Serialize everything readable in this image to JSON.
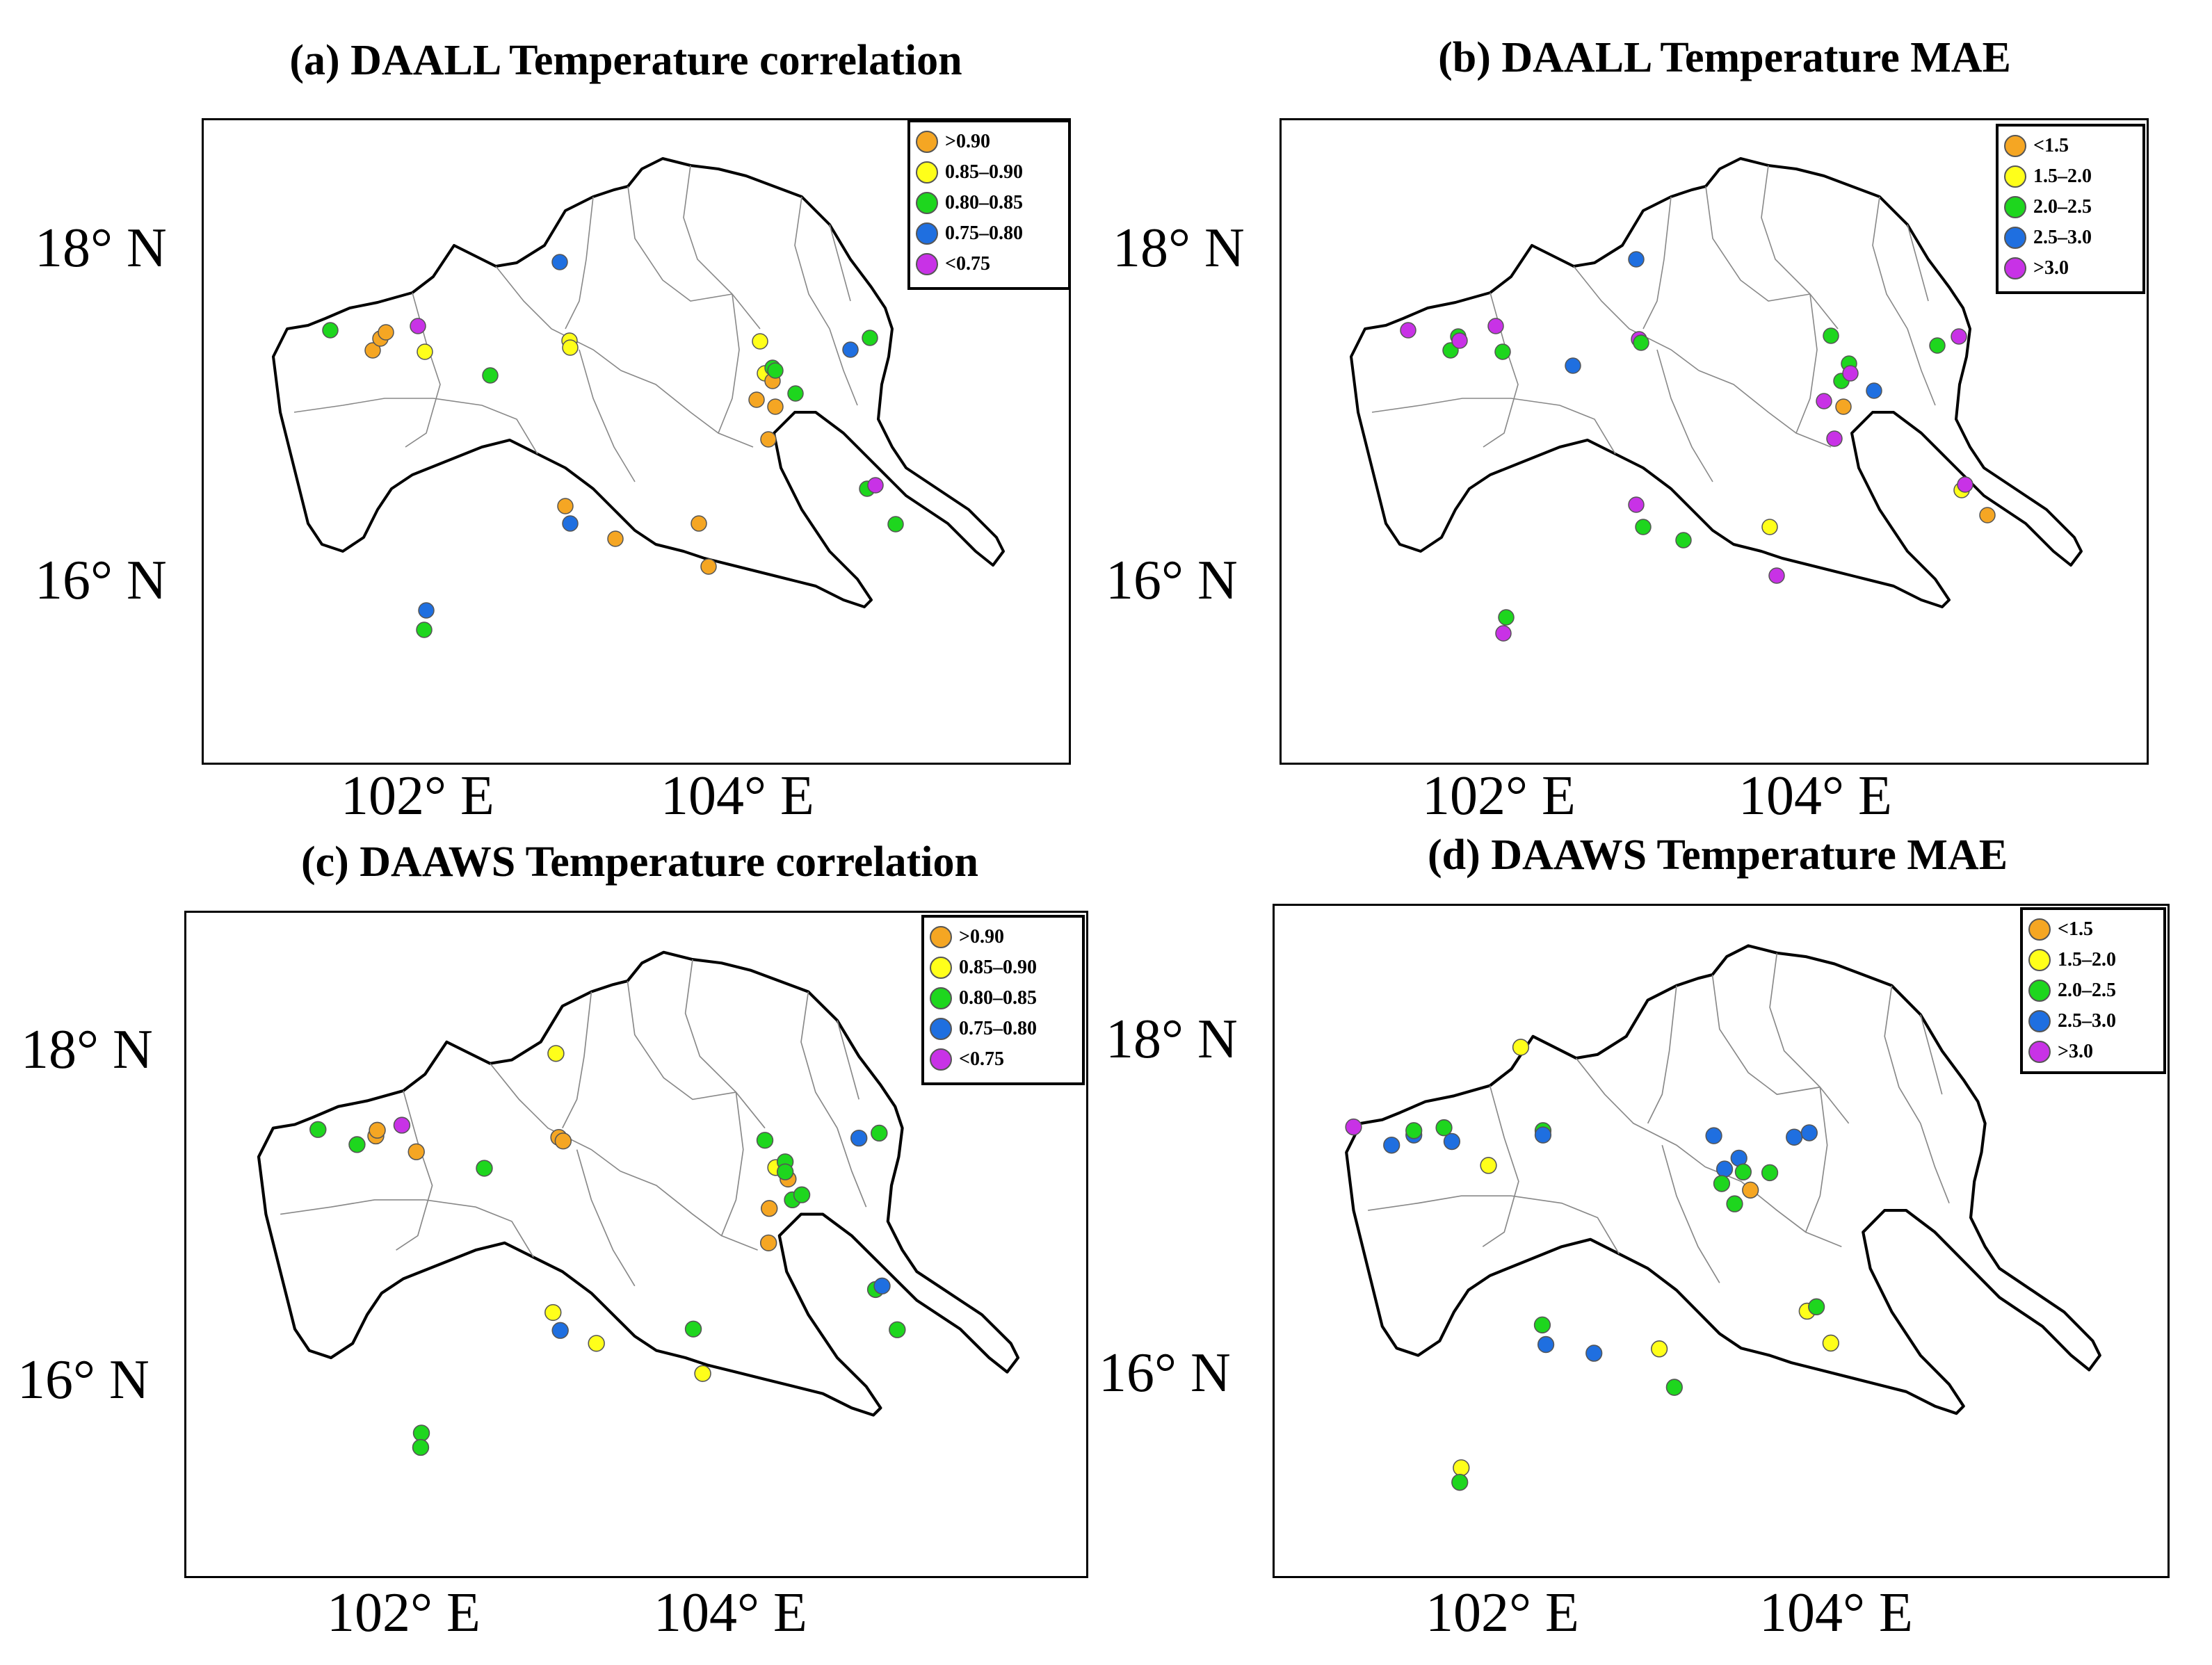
{
  "panels": [
    {
      "title": "(a) DAALL Temperature correlation",
      "legend": [
        {
          "label": ">0.90",
          "color": "#f5a623"
        },
        {
          "label": "0.85–0.90",
          "color": "#ffff1a"
        },
        {
          "label": "0.80–0.85",
          "color": "#1ed61e"
        },
        {
          "label": "0.75–0.80",
          "color": "#1f6fe0"
        },
        {
          "label": "<0.75",
          "color": "#c832e6"
        }
      ],
      "lat_labels": [
        "18° N",
        "16° N"
      ],
      "lon_labels": [
        "102° E",
        "104° E"
      ]
    },
    {
      "title": "(b) DAALL Temperature MAE",
      "legend": [
        {
          "label": "<1.5",
          "color": "#f5a623"
        },
        {
          "label": "1.5–2.0",
          "color": "#ffff1a"
        },
        {
          "label": "2.0–2.5",
          "color": "#1ed61e"
        },
        {
          "label": "2.5–3.0",
          "color": "#1f6fe0"
        },
        {
          "label": ">3.0",
          "color": "#c832e6"
        }
      ],
      "lat_labels": [
        "18° N",
        "16° N"
      ],
      "lon_labels": [
        "102° E",
        "104° E"
      ]
    },
    {
      "title": "(c) DAAWS Temperature correlation",
      "legend": [
        {
          "label": ">0.90",
          "color": "#f5a623"
        },
        {
          "label": "0.85–0.90",
          "color": "#ffff1a"
        },
        {
          "label": "0.80–0.85",
          "color": "#1ed61e"
        },
        {
          "label": "0.75–0.80",
          "color": "#1f6fe0"
        },
        {
          "label": "<0.75",
          "color": "#c832e6"
        }
      ],
      "lat_labels": [
        "18° N",
        "16° N"
      ],
      "lon_labels": [
        "102° E",
        "104° E"
      ]
    },
    {
      "title": "(d) DAAWS Temperature MAE",
      "legend": [
        {
          "label": "<1.5",
          "color": "#f5a623"
        },
        {
          "label": "1.5–2.0",
          "color": "#ffff1a"
        },
        {
          "label": "2.0–2.5",
          "color": "#1ed61e"
        },
        {
          "label": "2.5–3.0",
          "color": "#1f6fe0"
        },
        {
          "label": ">3.0",
          "color": "#c832e6"
        }
      ],
      "lat_labels": [
        "18° N",
        "16° N"
      ],
      "lon_labels": [
        "102° E",
        "104° E"
      ]
    }
  ]
}
